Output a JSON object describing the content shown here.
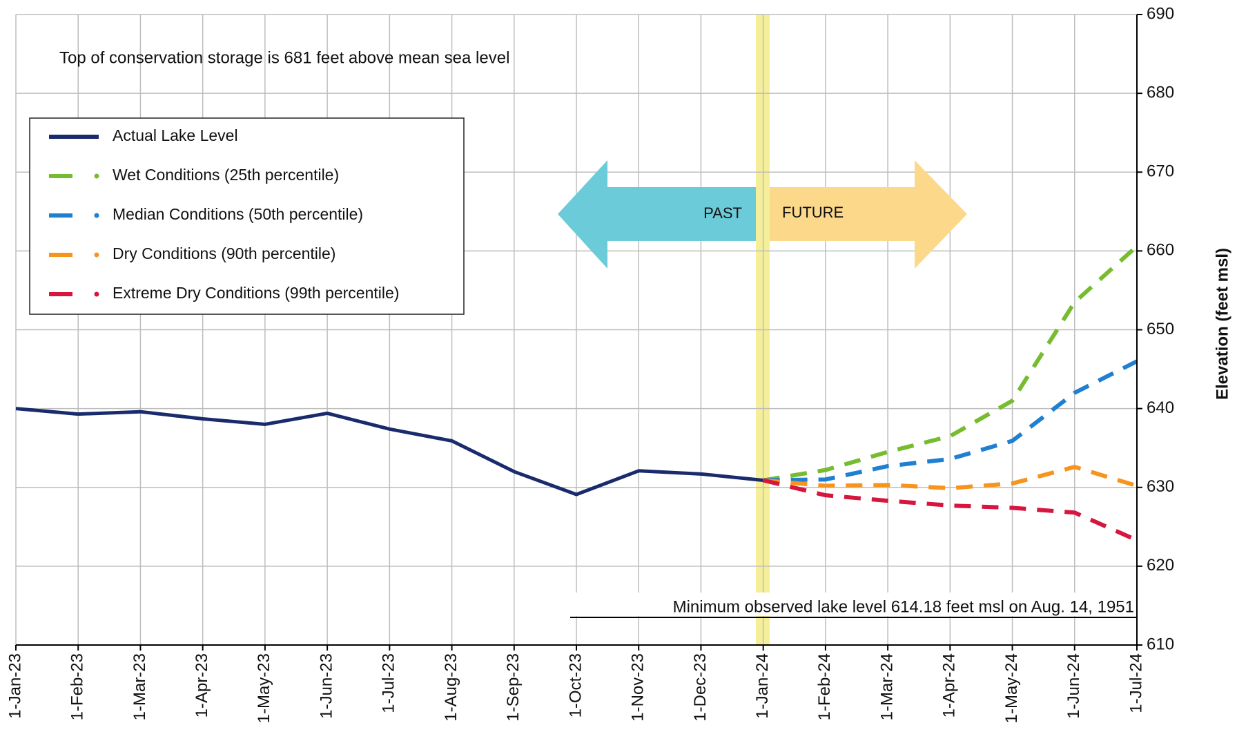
{
  "chart_data": {
    "type": "line",
    "annotations": {
      "storage": "Top of conservation storage is 681 feet above mean sea level",
      "past": "PAST",
      "future": "FUTURE",
      "minimum": "Minimum observed lake level 614.18 feet msl on Aug. 14, 1951"
    },
    "y_axis_label": "Elevation (feet msl)",
    "categories": [
      "1-Jan-23",
      "1-Feb-23",
      "1-Mar-23",
      "1-Apr-23",
      "1-May-23",
      "1-Jun-23",
      "1-Jul-23",
      "1-Aug-23",
      "1-Sep-23",
      "1-Oct-23",
      "1-Nov-23",
      "1-Dec-23",
      "1-Jan-24",
      "1-Feb-24",
      "1-Mar-24",
      "1-Apr-24",
      "1-May-24",
      "1-Jun-24",
      "1-Jul-24"
    ],
    "series": [
      {
        "name": "Actual Lake Level",
        "color": "#1a2b6d",
        "dashed": false,
        "values": [
          640,
          639.3,
          639.6,
          638.7,
          638,
          639.4,
          637.4,
          635.9,
          632,
          629.1,
          632.1,
          631.7,
          630.9,
          null,
          null,
          null,
          null,
          null,
          null
        ]
      },
      {
        "name": "Wet Conditions (25th percentile)",
        "color": "#77bc2e",
        "dashed": true,
        "values": [
          null,
          null,
          null,
          null,
          null,
          null,
          null,
          null,
          null,
          null,
          null,
          null,
          630.9,
          632.2,
          634.5,
          636.5,
          641,
          653.5,
          660.6
        ]
      },
      {
        "name": "Median Conditions (50th percentile)",
        "color": "#1f7fd0",
        "dashed": true,
        "values": [
          null,
          null,
          null,
          null,
          null,
          null,
          null,
          null,
          null,
          null,
          null,
          null,
          630.9,
          631,
          632.7,
          633.6,
          635.9,
          642,
          646
        ]
      },
      {
        "name": "Dry Conditions (90th percentile)",
        "color": "#f7941d",
        "dashed": true,
        "values": [
          null,
          null,
          null,
          null,
          null,
          null,
          null,
          null,
          null,
          null,
          null,
          null,
          630.9,
          630.2,
          630.3,
          629.9,
          630.5,
          632.6,
          630.2
        ]
      },
      {
        "name": "Extreme Dry Conditions (99th percentile)",
        "color": "#d6163f",
        "dashed": true,
        "values": [
          null,
          null,
          null,
          null,
          null,
          null,
          null,
          null,
          null,
          null,
          null,
          null,
          630.9,
          629,
          628.3,
          627.7,
          627.4,
          626.8,
          623.3
        ]
      }
    ],
    "ylim": [
      610,
      690
    ],
    "yticks": [
      610,
      620,
      630,
      640,
      650,
      660,
      670,
      680,
      690
    ],
    "grid": true,
    "y_axis_side": "right"
  }
}
